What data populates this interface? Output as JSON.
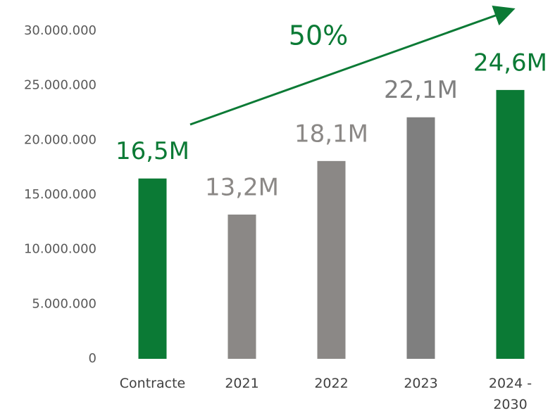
{
  "chart_data": {
    "type": "bar",
    "categories": [
      "Contracte",
      "2021",
      "2022",
      "2023",
      "2024 - 2030"
    ],
    "values": [
      16500000,
      13200000,
      18100000,
      22100000,
      24600000
    ],
    "value_labels": [
      "16,5M",
      "13,2M",
      "18,1M",
      "22,1M",
      "24,6M"
    ],
    "colors": [
      "#0b7a35",
      "#8b8886",
      "#8b8886",
      "#7f7f7f",
      "#0b7a35"
    ],
    "ylim": [
      0,
      30000000
    ],
    "yticks": [
      0,
      {
        "value": 5000000,
        "label": "5.000.000"
      },
      {
        "value": 10000000,
        "label": "10.000.000"
      },
      {
        "value": 15000000,
        "label": "15.000.000"
      },
      {
        "value": 20000000,
        "label": "20.000.000"
      },
      {
        "value": 25000000,
        "label": "25.000.000"
      },
      {
        "value": 30000000,
        "label": "30.000.000"
      }
    ],
    "grid": false,
    "annotation": "50%"
  }
}
